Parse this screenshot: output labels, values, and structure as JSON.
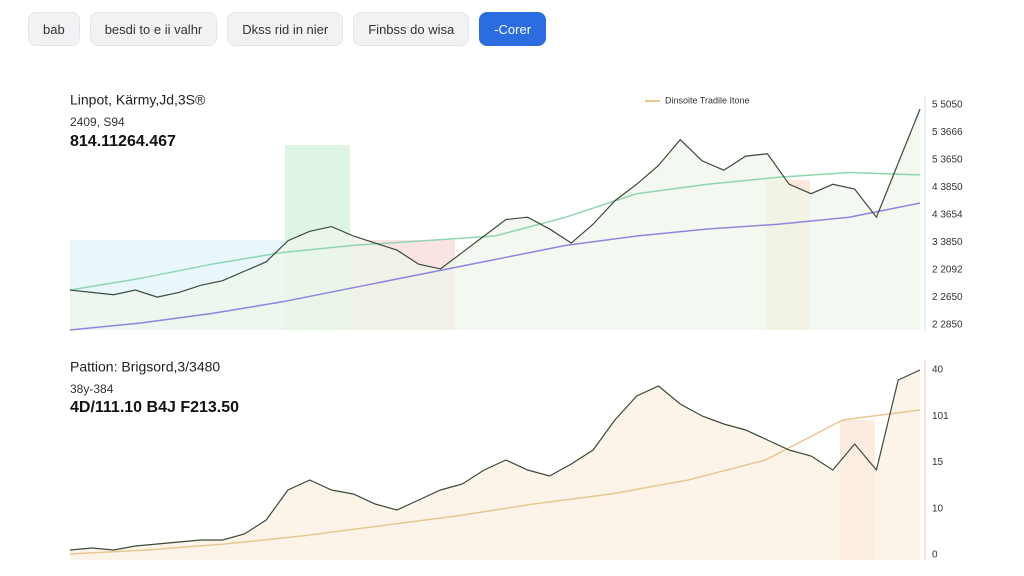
{
  "toolbar": {
    "buttons": [
      "bab",
      "besdi to e ii valhr",
      "Dkss rid in nier",
      "Finbss do wisa",
      "-Corer"
    ]
  },
  "panels": [
    {
      "title": "Linpot, Kärmy,Jd,3S®",
      "subtitle": "2409, S94",
      "price_text": "814.11264.467",
      "legend": "Dinsoite Tradile Itone",
      "axis_labels": [
        "5 5050",
        "5 3666",
        "5 3650",
        "4 3850",
        "4 3654",
        "3 3850",
        "2 2092",
        "2 2650",
        "2 2850"
      ],
      "ylim": [
        0,
        100
      ],
      "price": {
        "color": "#3a4a3a",
        "values": [
          17,
          16,
          15,
          17,
          14,
          16,
          19,
          21,
          25,
          29,
          38,
          42,
          44,
          40,
          37,
          34,
          28,
          26,
          33,
          40,
          47,
          48,
          43,
          37,
          45,
          55,
          62,
          70,
          81,
          72,
          68,
          74,
          75,
          62,
          58,
          62,
          60,
          48,
          71,
          94
        ]
      },
      "lines": [
        {
          "color": "#8c86e0",
          "values": [
            0,
            3,
            7,
            12,
            18,
            24,
            30,
            36,
            40,
            43,
            45,
            48,
            54
          ]
        },
        {
          "color": "#8fd6b0",
          "values": [
            17,
            22,
            28,
            33,
            36,
            38,
            40,
            48,
            58,
            62,
            65,
            67,
            66
          ]
        }
      ]
    },
    {
      "title": "Pattion: Brigsord,3/3480",
      "subtitle": "38y-384",
      "price_text": "4D/111.10 B4J F213.50",
      "axis_labels": [
        "40",
        "101",
        "15",
        "10",
        "0"
      ],
      "ylim": [
        0,
        100
      ],
      "price": {
        "color": "#3a4a3a",
        "values": [
          5,
          6,
          5,
          7,
          8,
          9,
          10,
          10,
          13,
          20,
          35,
          40,
          35,
          33,
          28,
          25,
          30,
          35,
          38,
          45,
          50,
          45,
          42,
          48,
          55,
          70,
          82,
          87,
          78,
          72,
          68,
          65,
          60,
          55,
          52,
          45,
          58,
          45,
          90,
          95
        ]
      },
      "lines": [
        {
          "color": "#e8c890",
          "values": [
            3,
            5,
            8,
            12,
            17,
            22,
            28,
            33,
            40,
            50,
            70,
            75
          ]
        }
      ]
    }
  ]
}
